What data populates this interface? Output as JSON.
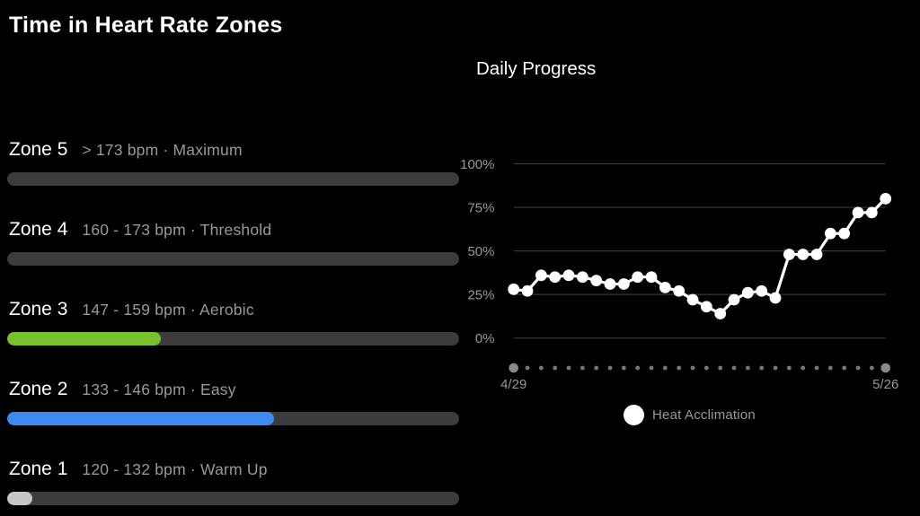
{
  "page_title": "Time in Heart Rate Zones",
  "colors": {
    "background": "#000000",
    "text_primary": "#ffffff",
    "text_secondary": "#98989d",
    "bar_track": "#3c3c3e",
    "zone3_fill": "#77c32e",
    "zone2_fill": "#3d8bee",
    "zone1_fill": "#c6c6cb",
    "gridline": "#38383a",
    "axis_dot_large": "#8a8a8e",
    "axis_dot_small": "#78787c",
    "series_line": "#ffffff"
  },
  "zones": [
    {
      "name": "Zone 5",
      "desc": "> 173 bpm · Maximum",
      "fill_percent": 0,
      "fill_color": null
    },
    {
      "name": "Zone 4",
      "desc": "160 - 173 bpm · Threshold",
      "fill_percent": 0,
      "fill_color": null
    },
    {
      "name": "Zone 3",
      "desc": "147 - 159 bpm · Aerobic",
      "fill_percent": 34,
      "fill_color": "#77c32e"
    },
    {
      "name": "Zone 2",
      "desc": "133 - 146 bpm · Easy",
      "fill_percent": 59,
      "fill_color": "#3d8bee"
    },
    {
      "name": "Zone 1",
      "desc": "120 - 132 bpm · Warm Up",
      "fill_percent": 5.5,
      "fill_color": "#c6c6cb"
    }
  ],
  "chart_data": {
    "type": "line",
    "title": "Daily Progress",
    "ylabel": "",
    "xlabel": "",
    "ylim": [
      0,
      100
    ],
    "grid": true,
    "y_ticks": [
      "100%",
      "75%",
      "50%",
      "25%",
      "0%"
    ],
    "y_tick_values": [
      100,
      75,
      50,
      25,
      0
    ],
    "x_start_label": "4/29",
    "x_end_label": "5/26",
    "series": [
      {
        "name": "Heat Acclimation",
        "values": [
          28,
          27,
          36,
          35,
          36,
          35,
          33,
          31,
          31,
          35,
          35,
          29,
          27,
          22,
          18,
          14,
          22,
          26,
          27,
          23,
          48,
          48,
          48,
          60,
          60,
          72,
          72,
          80
        ]
      }
    ],
    "legend": {
      "label": "Heat Acclimation",
      "position": "bottom"
    }
  }
}
